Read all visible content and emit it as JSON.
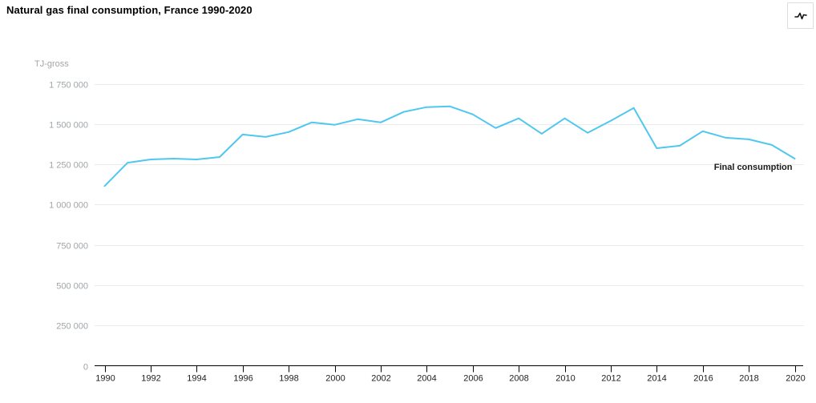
{
  "header": {
    "title": "Natural gas final consumption, France 1990-2020",
    "chart_type_button_icon": "line-chart-icon"
  },
  "colors": {
    "line": "#4fc7f0",
    "grid": "#ebebeb",
    "axis": "#000000",
    "x_tick_label": "#222222",
    "y_tick_label": "#a0a5a8",
    "series_label": "#1a1a1a"
  },
  "chart_data": {
    "type": "line",
    "title": "Natural gas final consumption, France 1990-2020",
    "xlabel": "",
    "ylabel": "TJ-gross",
    "ylim": [
      0,
      1750000
    ],
    "grid": "horizontal",
    "legend": "inline-end-label",
    "x": [
      1990,
      1991,
      1992,
      1993,
      1994,
      1995,
      1996,
      1997,
      1998,
      1999,
      2000,
      2001,
      2002,
      2003,
      2004,
      2005,
      2006,
      2007,
      2008,
      2009,
      2010,
      2011,
      2012,
      2013,
      2014,
      2015,
      2016,
      2017,
      2018,
      2019,
      2020
    ],
    "series": [
      {
        "name": "Final consumption",
        "values": [
          1115000,
          1260000,
          1280000,
          1285000,
          1280000,
          1295000,
          1435000,
          1420000,
          1450000,
          1510000,
          1495000,
          1530000,
          1510000,
          1575000,
          1605000,
          1610000,
          1560000,
          1475000,
          1535000,
          1440000,
          1535000,
          1445000,
          1520000,
          1600000,
          1350000,
          1365000,
          1455000,
          1415000,
          1405000,
          1370000,
          1285000
        ]
      }
    ],
    "y_ticks": [
      {
        "value": 0,
        "label": "0"
      },
      {
        "value": 250000,
        "label": "250 000"
      },
      {
        "value": 500000,
        "label": "500 000"
      },
      {
        "value": 750000,
        "label": "750 000"
      },
      {
        "value": 1000000,
        "label": "1 000 000"
      },
      {
        "value": 1250000,
        "label": "1 250 000"
      },
      {
        "value": 1500000,
        "label": "1 500 000"
      },
      {
        "value": 1750000,
        "label": "1 750 000"
      }
    ],
    "x_ticks": [
      {
        "value": 1990,
        "label": "1990"
      },
      {
        "value": 1992,
        "label": "1992"
      },
      {
        "value": 1994,
        "label": "1994"
      },
      {
        "value": 1996,
        "label": "1996"
      },
      {
        "value": 1998,
        "label": "1998"
      },
      {
        "value": 2000,
        "label": "2000"
      },
      {
        "value": 2002,
        "label": "2002"
      },
      {
        "value": 2004,
        "label": "2004"
      },
      {
        "value": 2006,
        "label": "2006"
      },
      {
        "value": 2008,
        "label": "2008"
      },
      {
        "value": 2010,
        "label": "2010"
      },
      {
        "value": 2012,
        "label": "2012"
      },
      {
        "value": 2014,
        "label": "2014"
      },
      {
        "value": 2016,
        "label": "2016"
      },
      {
        "value": 2018,
        "label": "2018"
      },
      {
        "value": 2020,
        "label": "2020"
      }
    ]
  }
}
